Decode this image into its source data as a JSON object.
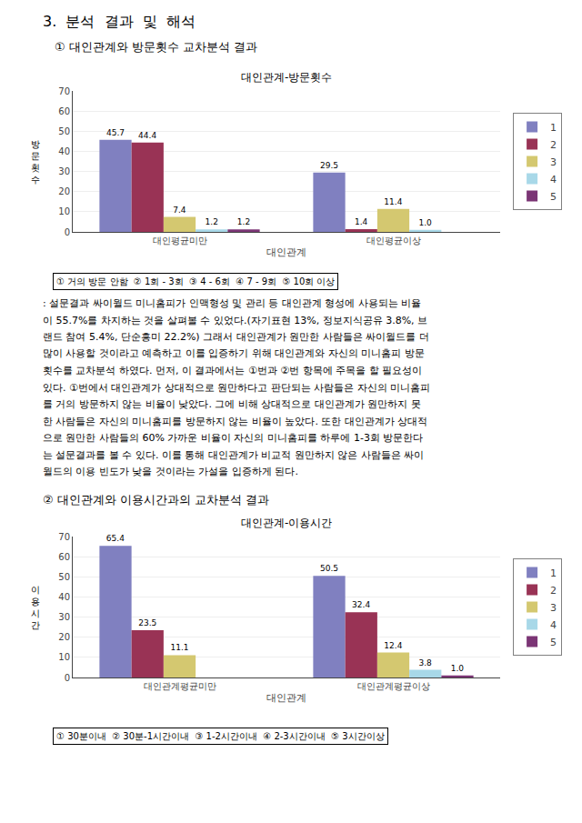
{
  "title": "3.  분석  결과  및  해석",
  "chart_data": [
    {
      "type": "bar",
      "subtitle": "① 대인관계와 방문횟수 교차분석 결과",
      "title": "대인관계-방문횟수",
      "ylabel": "방\n문\n횟\n수",
      "xlabel": "대인관계",
      "categories": [
        "대인평균미만",
        "대인평균이상"
      ],
      "series": [
        {
          "name": "1",
          "values": [
            45.7,
            29.5
          ],
          "value_labels": [
            "45.7",
            "29.5"
          ],
          "color": "#8080C0"
        },
        {
          "name": "2",
          "values": [
            44.4,
            1.4
          ],
          "value_labels": [
            "44.4",
            "1.4"
          ],
          "color": "#993355"
        },
        {
          "name": "3",
          "values": [
            7.4,
            11.4
          ],
          "value_labels": [
            "7.4",
            "11.4"
          ],
          "color": "#D4C870"
        },
        {
          "name": "4",
          "values": [
            1.2,
            1.0
          ],
          "value_labels": [
            "1.2",
            "1.0"
          ],
          "color": "#A8D8E8"
        },
        {
          "name": "5",
          "values": [
            1.2,
            0.0
          ],
          "value_labels": [
            "1.2",
            null
          ],
          "color": "#7B3575"
        }
      ],
      "ylim": [
        0,
        70
      ],
      "yticks": [
        0,
        10,
        20,
        30,
        40,
        50,
        60,
        70
      ],
      "grid": true,
      "legend": "right",
      "data_labels": true,
      "annotations": [
        "① 거의 방문 안함  ② 1회 - 3회  ③ 4 - 6회  ④ 7 - 9회  ⑤ 10회 이상",
        ": 설문결과 싸이월드 미니홈피가 인맥형성 및 관리 등 대인관계 형성에 사용되는 비율",
        "이 55.7%를 차지하는 것을 살펴볼 수 있었다.(자기표현 13%, 정보지식공유 3.8%, 브",
        "랜드 참여 5.4%, 단순흥미 22.2%) 그래서 대인관계가 원만한 사람들은 싸이월드를 더",
        "많이 사용할 것이라고 예측하고 이를 입증하기 위해 대인관계와 자신의 미니홈피 방문",
        "횟수를 교차분석 하였다. 먼저, 이 결과에서는 ①번과 ②번 항목에 주목을 할 필요성이",
        "있다. ①번에서 대인관계가 상대적으로 원만하다고 판단되는 사람들은 자신의 미니홈피",
        "를 거의 방문하지 않는 비율이 낮았다. 그에 비해 상대적으로 대인관계가 원만하지 못",
        "한 사람들은 자신의 미니홈피를 방문하지 않는 비율이 높았다. 또한 대인관계가 상대적",
        "으로 원만한 사람들의 60% 가까운 비율이 자신의 미니홈피를 하루에 1-3회 방문한다",
        "는 설문결과를 볼 수 있다. 이를 통해 대인관계가 비교적 원만하지 않은 사람들은 싸이",
        "월드의 이용 빈도가 낮을 것이라는 가설을 입증하게 된다."
      ]
    },
    {
      "type": "bar",
      "subtitle": "② 대인관계와 이용시간과의 교차분석 결과",
      "title": "대인관계-이용시간",
      "ylabel": "이\n용\n시\n간",
      "xlabel": "대인관계",
      "categories": [
        "대인관계평균미만",
        "대인관계평균이상"
      ],
      "series": [
        {
          "name": "1",
          "values": [
            65.4,
            50.5
          ],
          "value_labels": [
            "65.4",
            "50.5"
          ],
          "color": "#8080C0"
        },
        {
          "name": "2",
          "values": [
            23.5,
            32.4
          ],
          "value_labels": [
            "23.5",
            "32.4"
          ],
          "color": "#993355"
        },
        {
          "name": "3",
          "values": [
            11.1,
            12.4
          ],
          "value_labels": [
            "11.1",
            "12.4"
          ],
          "color": "#D4C870"
        },
        {
          "name": "4",
          "values": [
            0.0,
            3.8
          ],
          "value_labels": [
            null,
            "3.8"
          ],
          "color": "#A8D8E8"
        },
        {
          "name": "5",
          "values": [
            0.0,
            1.0
          ],
          "value_labels": [
            null,
            "1.0"
          ],
          "color": "#7B3575"
        }
      ],
      "ylim": [
        0,
        70
      ],
      "yticks": [
        0,
        10,
        20,
        30,
        40,
        50,
        60,
        70
      ],
      "grid": true,
      "legend": "right",
      "data_labels": true,
      "annotations": [
        "① 30분이내  ② 30분-1시간이내  ③ 1-2시간이내  ④ 2-3시간이내  ⑤ 3시간이상"
      ]
    }
  ]
}
